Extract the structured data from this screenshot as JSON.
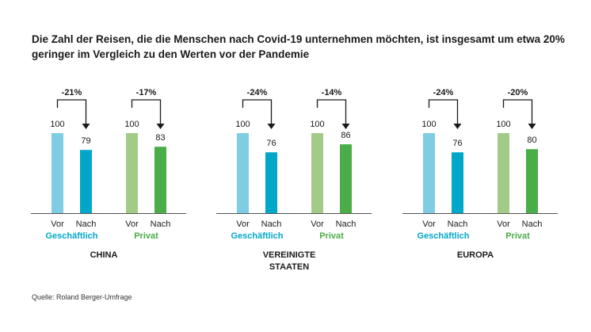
{
  "title": "Die Zahl der Reisen, die die Menschen nach Covid-19 unternehmen möchten, ist insgesamt um etwa 20% geringer im Vergleich zu den Werten vor der Pandemie",
  "source": "Quelle: Roland Berger-Umfrage",
  "colors": {
    "business_before": "#7ecde3",
    "business_after": "#00a7c9",
    "private_before": "#a2cb87",
    "private_after": "#4aad48",
    "business_label": "#00a7c9",
    "private_label": "#4aad48",
    "text": "#1a1a1a",
    "axis": "#555555"
  },
  "chart_data": {
    "type": "bar",
    "title": "Die Zahl der Reisen, die die Menschen nach Covid-19 unternehmen möchten, ist insgesamt um etwa 20% geringer im Vergleich zu den Werten vor der Pandemie",
    "ylim": [
      0,
      100
    ],
    "bar_labels": [
      "Vor",
      "Nach"
    ],
    "groups": [
      {
        "region": [
          "CHINA"
        ],
        "business": {
          "label": "Geschäftlich",
          "before": 100,
          "after": 79,
          "change": "-21%"
        },
        "private": {
          "label": "Privat",
          "before": 100,
          "after": 83,
          "change": "-17%"
        }
      },
      {
        "region": [
          "VEREINIGTE",
          "STAATEN"
        ],
        "business": {
          "label": "Geschäftlich",
          "before": 100,
          "after": 76,
          "change": "-24%"
        },
        "private": {
          "label": "Privat",
          "before": 100,
          "after": 86,
          "change": "-14%"
        }
      },
      {
        "region": [
          "EUROPA"
        ],
        "business": {
          "label": "Geschäftlich",
          "before": 100,
          "after": 76,
          "change": "-24%"
        },
        "private": {
          "label": "Privat",
          "before": 100,
          "after": 80,
          "change": "-20%"
        }
      }
    ]
  }
}
